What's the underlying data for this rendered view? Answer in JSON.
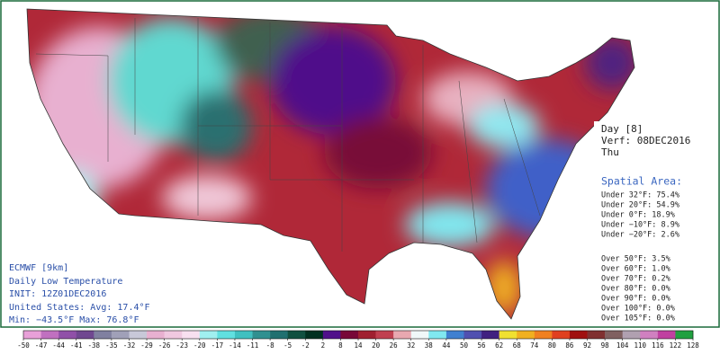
{
  "info_box": {
    "model": "ECMWF [9km]",
    "product": "Daily Low Temperature",
    "init": "INIT: 12Z01DEC2016",
    "average": "United States: Avg: 17.4°F",
    "extremes": "Min: −43.5°F Max: 76.8°F"
  },
  "valid_box": {
    "day": "Day [8]",
    "verf": "Verf: 08DEC2016",
    "weekday": "Thu"
  },
  "spatial_area": {
    "title": "Spatial Area:",
    "under": [
      "Under 32°F: 75.4%",
      "Under 20°F: 54.9%",
      "Under 0°F: 18.9%",
      "Under −10°F: 8.9%",
      "Under −20°F: 2.6%"
    ],
    "over": [
      "Over 50°F: 3.5%",
      "Over 60°F: 1.0%",
      "Over 70°F: 0.2%",
      "Over 80°F: 0.0%",
      "Over 90°F: 0.0%",
      "Over 100°F: 0.0%",
      "Over 105°F: 0.0%"
    ]
  },
  "colorbar": {
    "ticks": [
      -50,
      -47,
      -44,
      -41,
      -38,
      -35,
      -32,
      -29,
      -26,
      -23,
      -20,
      -17,
      -14,
      -11,
      -8,
      -5,
      -2,
      2,
      8,
      14,
      20,
      26,
      32,
      38,
      44,
      50,
      56,
      62,
      68,
      74,
      80,
      86,
      92,
      98,
      104,
      110,
      116,
      122,
      128
    ],
    "colors": [
      "#e8a0d8",
      "#c070c0",
      "#9050a8",
      "#704890",
      "#8080a0",
      "#a0a0b8",
      "#c8c8d8",
      "#e8b0d0",
      "#f0c8e0",
      "#f8e0f0",
      "#a0f0f0",
      "#60e0e0",
      "#40c0c0",
      "#309090",
      "#207070",
      "#105040",
      "#003020",
      "#50108a",
      "#780838",
      "#a02030",
      "#c04050",
      "#e8a8b0",
      "#f0f8f8",
      "#80e8f0",
      "#4080d0",
      "#5050b0",
      "#402080",
      "#f0e030",
      "#f0b020",
      "#f08020",
      "#e04020",
      "#a01010",
      "#803030",
      "#806060",
      "#b0a0b0",
      "#d080c0",
      "#c040a0",
      "#20a040"
    ]
  }
}
